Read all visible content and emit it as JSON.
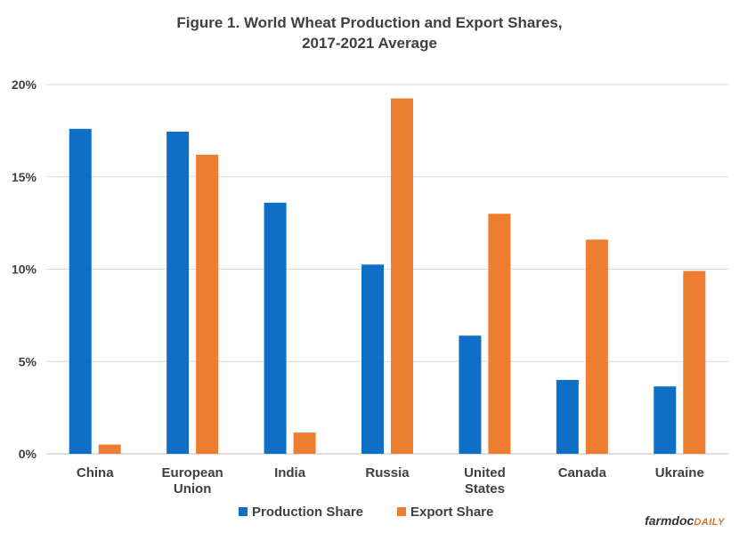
{
  "chart_data": {
    "type": "bar",
    "title_line1": "Figure 1. World Wheat Production and Export Shares,",
    "title_line2": "2017-2021 Average",
    "categories": [
      "China",
      "European Union",
      "India",
      "Russia",
      "United States",
      "Canada",
      "Ukraine"
    ],
    "category_lines": [
      [
        "China"
      ],
      [
        "European",
        "Union"
      ],
      [
        "India"
      ],
      [
        "Russia"
      ],
      [
        "United",
        "States"
      ],
      [
        "Canada"
      ],
      [
        "Ukraine"
      ]
    ],
    "series": [
      {
        "name": "Production Share",
        "color": "#0f6fc6",
        "values": [
          17.6,
          17.45,
          13.6,
          10.25,
          6.4,
          4.0,
          3.65
        ]
      },
      {
        "name": "Export Share",
        "color": "#ed7d31",
        "values": [
          0.5,
          16.2,
          1.15,
          19.25,
          13.0,
          11.6,
          9.9
        ]
      }
    ],
    "yticks": [
      "0%",
      "5%",
      "10%",
      "15%",
      "20%"
    ],
    "ytick_values": [
      0,
      5,
      10,
      15,
      20
    ],
    "ylim": [
      0,
      20
    ],
    "grid": true,
    "legend_position": "bottom"
  },
  "brand": {
    "main": "farmdoc",
    "suffix": "DAILY"
  }
}
